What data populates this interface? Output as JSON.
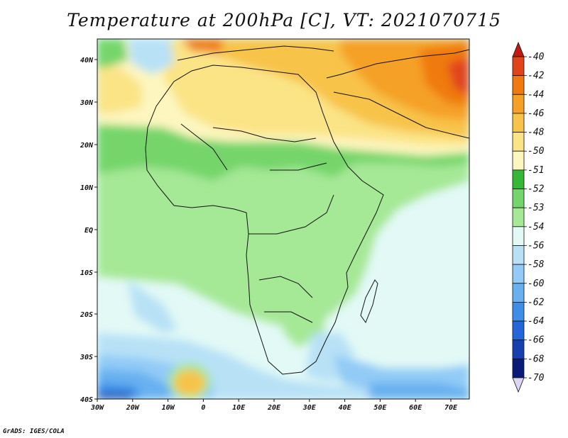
{
  "title": "Temperature at 200hPa [C], VT: 2021070715",
  "credit": "GrADS: IGES/COLA",
  "map": {
    "lon_ticks": [
      "30W",
      "20W",
      "10W",
      "0",
      "10E",
      "20E",
      "30E",
      "40E",
      "50E",
      "60E",
      "70E"
    ],
    "lat_ticks": [
      "40N",
      "30N",
      "20N",
      "10N",
      "EQ",
      "10S",
      "20S",
      "30S",
      "40S"
    ],
    "lon_range": [
      -30,
      75
    ],
    "lat_range": [
      -40,
      45
    ]
  },
  "colorbar": {
    "labels": [
      "-40",
      "-42",
      "-44",
      "-46",
      "-48",
      "-50",
      "-51",
      "-52",
      "-53",
      "-54",
      "-56",
      "-58",
      "-60",
      "-62",
      "-64",
      "-66",
      "-68",
      "-70"
    ],
    "colors": [
      "#c01a0f",
      "#e0451a",
      "#f07a10",
      "#f5a028",
      "#f8c34a",
      "#fbe486",
      "#fdf6bf",
      "#36b836",
      "#74d56b",
      "#a5e896",
      "#e2f9f6",
      "#b8e1f6",
      "#92cbf6",
      "#68b0f0",
      "#3e8ee8",
      "#2266d8",
      "#1640b0",
      "#0a1a78",
      "#dcd6f4"
    ]
  }
}
